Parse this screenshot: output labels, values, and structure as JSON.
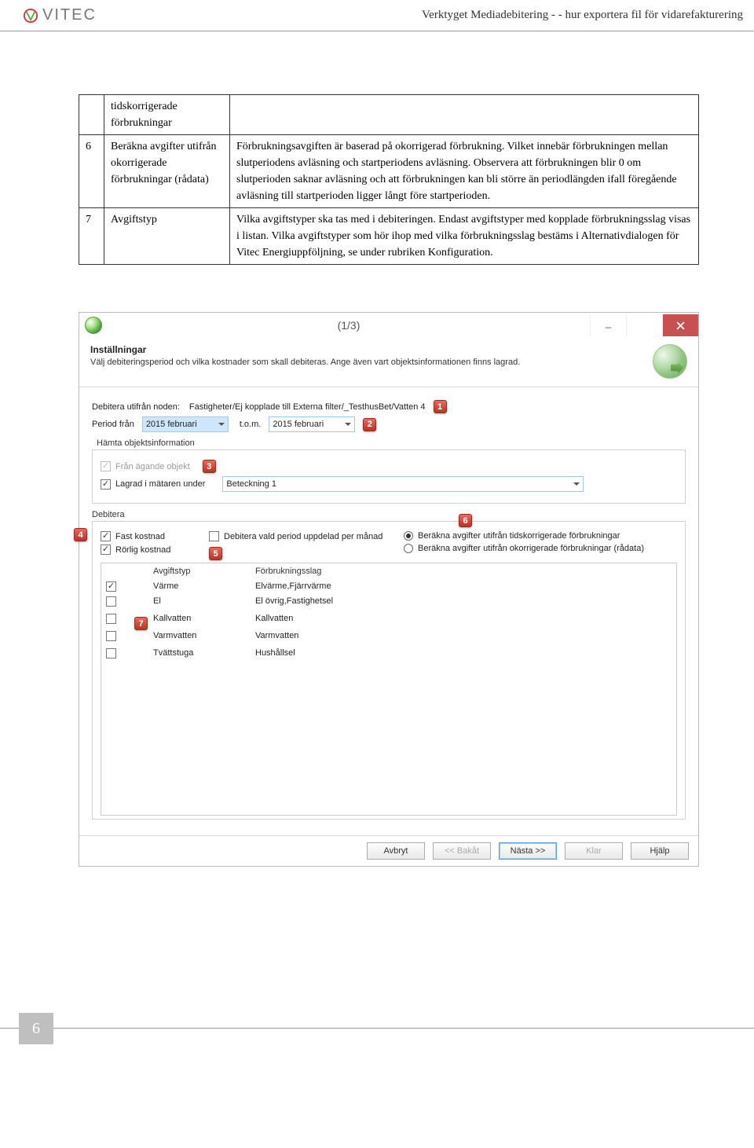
{
  "header": {
    "logo_text": "VITEC",
    "title": "Verktyget Mediadebitering - - hur exportera fil för vidarefakturering"
  },
  "table": {
    "rows": [
      {
        "n": "",
        "label": "tidskorrigerade förbrukningar",
        "desc": ""
      },
      {
        "n": "6",
        "label": "Beräkna avgifter utifrån okorrigerade förbrukningar (rådata)",
        "desc": "Förbrukningsavgiften är baserad på okorrigerad förbrukning. Vilket innebär förbrukningen mellan slutperiodens avläsning och startperiodens avläsning. Observera att förbrukningen blir 0 om slutperioden saknar avläsning och att förbrukningen kan bli större än periodlängden ifall föregående avläsning till startperioden ligger långt före startperioden."
      },
      {
        "n": "7",
        "label": "Avgiftstyp",
        "desc": "Vilka avgiftstyper ska tas med i debiteringen. Endast avgiftstyper med kopplade förbrukningsslag visas i listan. Vilka avgiftstyper som hör ihop med vilka förbrukningsslag bestäms i Alternativdialogen för Vitec Energiuppföljning, se under rubriken Konfiguration."
      }
    ]
  },
  "screenshot": {
    "titlebar_center": "(1/3)",
    "section_title": "Inställningar",
    "section_sub": "Välj debiteringsperiod och vilka kostnader som skall debiteras. Ange även vart objektsinformationen finns lagrad.",
    "debitera_label": "Debitera utifrån noden:",
    "debitera_value": "Fastigheter/Ej kopplade till Externa filter/_TesthusBet/Vatten 4",
    "period_from_label": "Period från",
    "period_from_value": "2015 februari",
    "period_to_label": "t.o.m.",
    "period_to_value": "2015 februari",
    "objinfo_title": "Hämta objektsinformation",
    "chk_from_owner": "Från ägande objekt",
    "chk_stored": "Lagrad i mätaren under",
    "stored_value": "Beteckning 1",
    "debitera_title": "Debitera",
    "chk_fast": "Fast kostnad",
    "chk_rorlig": "Rörlig kostnad",
    "chk_split": "Debitera vald period uppdelad per månad",
    "radio_tids": "Beräkna avgifter utifrån tidskorrigerade förbrukningar",
    "radio_okorr": "Beräkna avgifter utifrån okorrigerade förbrukningar (rådata)",
    "grid_h1": "Avgiftstyp",
    "grid_h2": "Förbrukningsslag",
    "grid_rows": [
      {
        "chk": true,
        "a": "Värme",
        "b": "Elvärme,Fjärrvärme"
      },
      {
        "chk": false,
        "a": "El",
        "b": "El övrig,Fastighetsel"
      },
      {
        "chk": false,
        "a": "Kallvatten",
        "b": "Kallvatten"
      },
      {
        "chk": false,
        "a": "Varmvatten",
        "b": "Varmvatten"
      },
      {
        "chk": false,
        "a": "Tvättstuga",
        "b": "Hushållsel"
      }
    ],
    "btn_cancel": "Avbryt",
    "btn_back": "<< Bakåt",
    "btn_next": "Nästa >>",
    "btn_done": "Klar",
    "btn_help": "Hjälp"
  },
  "page_number": "6",
  "colors": {
    "callout_bg": "#d24a3a",
    "header_rule": "#999999"
  }
}
